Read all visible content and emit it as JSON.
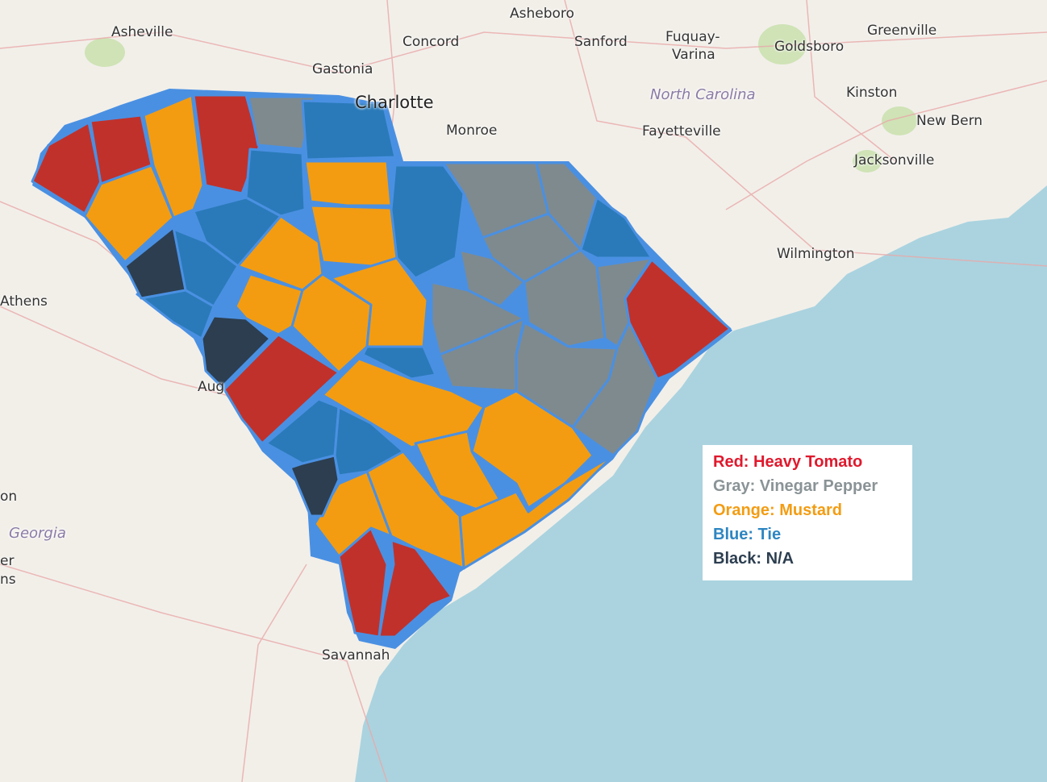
{
  "map": {
    "colors": {
      "ocean": "#aad3df",
      "land": "#f2efe9",
      "state_border": "#4a90e2",
      "red": "#c0312b",
      "gray": "#7f8a8e",
      "orange": "#f39c12",
      "blue": "#2a7ab9",
      "black": "#2c3e50"
    },
    "places": {
      "asheville": "Asheville",
      "asheboro": "Asheboro",
      "concord": "Concord",
      "sanford": "Sanford",
      "fuquay": "Fuquay-",
      "varina": "Varina",
      "goldsboro": "Goldsboro",
      "greenville": "Greenville",
      "gastonia": "Gastonia",
      "charlotte": "Charlotte",
      "monroe": "Monroe",
      "north_carolina": "North Carolina",
      "kinston": "Kinston",
      "fayetteville": "Fayetteville",
      "new_bern": "New Bern",
      "jacksonville": "Jacksonville",
      "wilmington": "Wilmington",
      "athens": "Athens",
      "augusta": "Aug",
      "georgia": "Georgia",
      "savannah": "Savannah",
      "edge_on": "on",
      "edge_er": "er",
      "edge_ns": "ns"
    }
  },
  "legend": {
    "items": [
      {
        "label": "Red: Heavy Tomato",
        "color": "#e0192d"
      },
      {
        "label": "Gray: Vinegar Pepper",
        "color": "#8a9396"
      },
      {
        "label": "Orange: Mustard",
        "color": "#f39c12"
      },
      {
        "label": "Blue: Tie",
        "color": "#2e86c1"
      },
      {
        "label": "Black: N/A",
        "color": "#2c3e50"
      }
    ]
  }
}
